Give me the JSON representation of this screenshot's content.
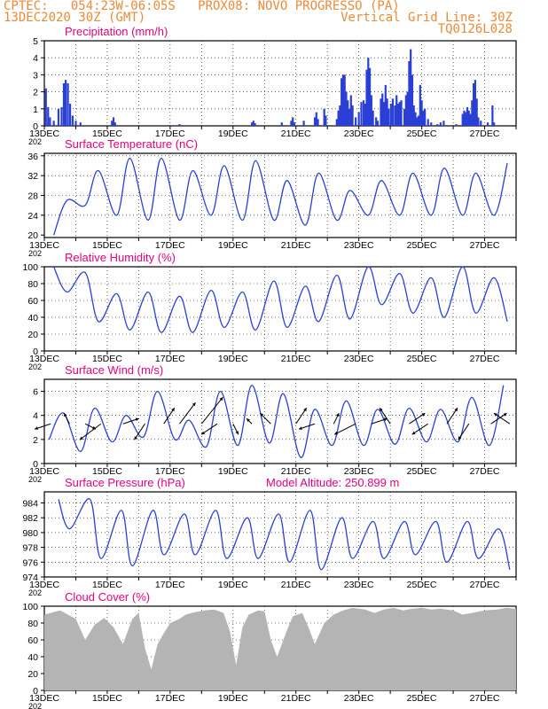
{
  "header": {
    "line1_left": "CPTEC:   054:23W-06:05S   PROX08: NOVO PROGRESSO (PA)",
    "line2_left": "13DEC2020 30Z (GMT)",
    "line2_right": "Vertical Grid Line: 30Z",
    "line3_right": "TQ0126L028"
  },
  "colors": {
    "header": "#ea8a3a",
    "title": "#e6007e",
    "series": "#2a3fd6",
    "cloud": "#b4b4b4"
  },
  "x_axis": {
    "start_day": 13,
    "days": 15,
    "tick_labels": [
      "13DEC",
      "15DEC",
      "17DEC",
      "19DEC",
      "21DEC",
      "23DEC",
      "25DEC",
      "27DEC"
    ],
    "year_fragment": "202"
  },
  "chart_data": [
    {
      "id": "precip",
      "type": "bar",
      "title": "Precipitation  (mm/h)",
      "ylim": [
        0,
        5
      ],
      "yticks": [
        0,
        1,
        2,
        3,
        4,
        5
      ],
      "events": [
        {
          "day": 0.05,
          "value": 2.2
        },
        {
          "day": 0.12,
          "value": 1.1
        },
        {
          "day": 0.18,
          "value": 0.5
        },
        {
          "day": 0.3,
          "value": 0.3
        },
        {
          "day": 0.45,
          "value": 1.0
        },
        {
          "day": 0.55,
          "value": 1.1
        },
        {
          "day": 0.62,
          "value": 2.5
        },
        {
          "day": 0.68,
          "value": 2.7
        },
        {
          "day": 0.75,
          "value": 2.5
        },
        {
          "day": 0.82,
          "value": 1.3
        },
        {
          "day": 0.9,
          "value": 0.6
        },
        {
          "day": 1.0,
          "value": 0.3
        },
        {
          "day": 1.15,
          "value": 0.2
        },
        {
          "day": 2.15,
          "value": 0.3
        },
        {
          "day": 2.2,
          "value": 0.5
        },
        {
          "day": 2.25,
          "value": 0.2
        },
        {
          "day": 4.3,
          "value": 0.1
        },
        {
          "day": 6.6,
          "value": 0.2
        },
        {
          "day": 6.65,
          "value": 0.3
        },
        {
          "day": 6.7,
          "value": 0.15
        },
        {
          "day": 7.55,
          "value": 0.2
        },
        {
          "day": 7.85,
          "value": 0.3
        },
        {
          "day": 7.9,
          "value": 0.5
        },
        {
          "day": 7.95,
          "value": 0.2
        },
        {
          "day": 8.25,
          "value": 0.3
        },
        {
          "day": 8.6,
          "value": 0.5
        },
        {
          "day": 8.65,
          "value": 0.8
        },
        {
          "day": 8.7,
          "value": 0.4
        },
        {
          "day": 8.9,
          "value": 1.0
        },
        {
          "day": 8.95,
          "value": 0.6
        },
        {
          "day": 9.3,
          "value": 0.4
        },
        {
          "day": 9.35,
          "value": 0.9
        },
        {
          "day": 9.4,
          "value": 1.2
        },
        {
          "day": 9.45,
          "value": 2.8
        },
        {
          "day": 9.5,
          "value": 3.0
        },
        {
          "day": 9.55,
          "value": 3.0
        },
        {
          "day": 9.6,
          "value": 2.0
        },
        {
          "day": 9.65,
          "value": 1.5
        },
        {
          "day": 9.7,
          "value": 1.0
        },
        {
          "day": 9.75,
          "value": 1.8
        },
        {
          "day": 9.8,
          "value": 1.2
        },
        {
          "day": 9.9,
          "value": 0.5
        },
        {
          "day": 10.0,
          "value": 0.8
        },
        {
          "day": 10.08,
          "value": 1.4
        },
        {
          "day": 10.15,
          "value": 1.5
        },
        {
          "day": 10.2,
          "value": 1.3
        },
        {
          "day": 10.25,
          "value": 3.3
        },
        {
          "day": 10.3,
          "value": 4.0
        },
        {
          "day": 10.35,
          "value": 3.4
        },
        {
          "day": 10.4,
          "value": 1.8
        },
        {
          "day": 10.45,
          "value": 0.9
        },
        {
          "day": 10.55,
          "value": 0.5
        },
        {
          "day": 10.6,
          "value": 0.3
        },
        {
          "day": 10.7,
          "value": 1.6
        },
        {
          "day": 10.75,
          "value": 1.9
        },
        {
          "day": 10.8,
          "value": 1.4
        },
        {
          "day": 10.85,
          "value": 2.4
        },
        {
          "day": 10.9,
          "value": 1.6
        },
        {
          "day": 10.95,
          "value": 1.0
        },
        {
          "day": 11.02,
          "value": 1.3
        },
        {
          "day": 11.08,
          "value": 1.6
        },
        {
          "day": 11.15,
          "value": 1.2
        },
        {
          "day": 11.2,
          "value": 1.8
        },
        {
          "day": 11.25,
          "value": 1.3
        },
        {
          "day": 11.3,
          "value": 1.4
        },
        {
          "day": 11.35,
          "value": 1.5
        },
        {
          "day": 11.45,
          "value": 1.0
        },
        {
          "day": 11.5,
          "value": 1.8
        },
        {
          "day": 11.55,
          "value": 2.0
        },
        {
          "day": 11.6,
          "value": 3.8
        },
        {
          "day": 11.65,
          "value": 4.5
        },
        {
          "day": 11.7,
          "value": 3.0
        },
        {
          "day": 11.75,
          "value": 1.2
        },
        {
          "day": 11.8,
          "value": 0.8
        },
        {
          "day": 11.85,
          "value": 0.5
        },
        {
          "day": 11.9,
          "value": 0.6
        },
        {
          "day": 11.95,
          "value": 2.4
        },
        {
          "day": 12.0,
          "value": 1.5
        },
        {
          "day": 12.05,
          "value": 0.9
        },
        {
          "day": 12.1,
          "value": 1.0
        },
        {
          "day": 12.2,
          "value": 0.4
        },
        {
          "day": 12.3,
          "value": 0.2
        },
        {
          "day": 12.5,
          "value": 0.1
        },
        {
          "day": 12.6,
          "value": 0.2
        },
        {
          "day": 12.7,
          "value": 0.3
        },
        {
          "day": 13.1,
          "value": 0.1
        },
        {
          "day": 13.3,
          "value": 0.7
        },
        {
          "day": 13.35,
          "value": 0.9
        },
        {
          "day": 13.4,
          "value": 0.8
        },
        {
          "day": 13.45,
          "value": 1.1
        },
        {
          "day": 13.5,
          "value": 0.9
        },
        {
          "day": 13.55,
          "value": 0.7
        },
        {
          "day": 13.6,
          "value": 1.5
        },
        {
          "day": 13.65,
          "value": 2.5
        },
        {
          "day": 13.7,
          "value": 2.7
        },
        {
          "day": 13.75,
          "value": 1.6
        },
        {
          "day": 13.8,
          "value": 0.5
        },
        {
          "day": 13.88,
          "value": 0.3
        },
        {
          "day": 14.1,
          "value": 0.2
        },
        {
          "day": 14.25,
          "value": 1.2
        },
        {
          "day": 14.3,
          "value": 0.2
        }
      ]
    },
    {
      "id": "temp",
      "type": "line",
      "title": "Surface Temperature (nC)",
      "ylim": [
        19.5,
        36.5
      ],
      "yticks": [
        20,
        24,
        28,
        32,
        36
      ],
      "tmax": [
        27,
        33,
        35.5,
        35.5,
        33,
        34,
        35,
        31,
        32.5,
        29,
        31,
        32.5,
        33.5,
        32.5,
        34.5
      ],
      "tmin": [
        20,
        26,
        24,
        23,
        23,
        24,
        23,
        23,
        22,
        23,
        24,
        24,
        24,
        24,
        24
      ]
    },
    {
      "id": "rh",
      "type": "line",
      "title": "Relative Humidity (%)",
      "ylim": [
        0,
        100
      ],
      "yticks": [
        0,
        20,
        40,
        60,
        80,
        100
      ],
      "rhmax": [
        100,
        93,
        68,
        70,
        65,
        72,
        70,
        83,
        77,
        90,
        100,
        92,
        87,
        100,
        87
      ],
      "rhmin": [
        70,
        35,
        25,
        22,
        22,
        28,
        25,
        28,
        35,
        38,
        55,
        45,
        40,
        45,
        35
      ]
    },
    {
      "id": "wind",
      "type": "line",
      "title": "Surface Wind (m/s)",
      "ylim": [
        0,
        7
      ],
      "yticks": [
        0,
        2,
        4,
        6
      ],
      "speed_max": [
        4.2,
        4.6,
        4.0,
        6.0,
        3.6,
        6.0,
        6.5,
        5.8,
        4.5,
        5.2,
        4.5,
        4.6,
        4.5,
        5.5,
        6.5
      ],
      "speed_min": [
        2.0,
        1.0,
        1.8,
        2.2,
        2.0,
        1.4,
        1.5,
        1.7,
        0.5,
        1.5,
        1.5,
        1.6,
        1.8,
        1.8,
        1.5
      ],
      "vectors": [
        {
          "day": 0.2,
          "u": -0.3,
          "v": -0.1
        },
        {
          "day": 0.8,
          "u": -0.1,
          "v": 0.2
        },
        {
          "day": 1.3,
          "u": 0.2,
          "v": -0.1
        },
        {
          "day": 1.8,
          "u": -0.4,
          "v": -0.3
        },
        {
          "day": 2.5,
          "u": 0.3,
          "v": 0.1
        },
        {
          "day": 3.2,
          "u": -0.2,
          "v": -0.3
        },
        {
          "day": 3.8,
          "u": 0.2,
          "v": 0.3
        },
        {
          "day": 4.3,
          "u": 0.3,
          "v": 0.4
        },
        {
          "day": 5.0,
          "u": 0.4,
          "v": 0.5
        },
        {
          "day": 5.5,
          "u": -0.3,
          "v": -0.2
        },
        {
          "day": 6.0,
          "u": 0.1,
          "v": -0.2
        },
        {
          "day": 6.6,
          "u": -0.1,
          "v": 0.1
        },
        {
          "day": 7.2,
          "u": -0.2,
          "v": 0.2
        },
        {
          "day": 8.0,
          "u": 0.2,
          "v": 0.3
        },
        {
          "day": 8.6,
          "u": -0.3,
          "v": -0.1
        },
        {
          "day": 9.2,
          "u": 0.1,
          "v": 0.2
        },
        {
          "day": 9.9,
          "u": -0.4,
          "v": -0.2
        },
        {
          "day": 10.4,
          "u": 0.3,
          "v": 0.1
        },
        {
          "day": 11.0,
          "u": -0.2,
          "v": 0.3
        },
        {
          "day": 11.6,
          "u": 0.3,
          "v": 0.2
        },
        {
          "day": 12.2,
          "u": -0.3,
          "v": -0.2
        },
        {
          "day": 12.8,
          "u": 0.2,
          "v": 0.3
        },
        {
          "day": 13.5,
          "u": -0.2,
          "v": -0.3
        },
        {
          "day": 14.2,
          "u": 0.3,
          "v": 0.2
        },
        {
          "day": 14.8,
          "u": -0.3,
          "v": 0.2
        }
      ]
    },
    {
      "id": "press",
      "type": "line",
      "title": "Surface Pressure (hPa)",
      "subtitle": "Model Altitude: 250.899  m",
      "ylim": [
        974,
        985.5
      ],
      "yticks": [
        974,
        976,
        978,
        980,
        982,
        984
      ],
      "pmax": [
        984.5,
        984.5,
        983,
        983,
        982.5,
        983,
        982,
        982.5,
        983,
        982,
        981.5,
        981.5,
        981.5,
        981.5,
        980.5
      ],
      "pmin": [
        980.5,
        976.5,
        975.5,
        977,
        977,
        976.5,
        976.5,
        976,
        975,
        976.5,
        976.5,
        977,
        976,
        976.5,
        975
      ]
    },
    {
      "id": "cloud",
      "type": "area",
      "title": "Cloud Cover (%)",
      "ylim": [
        0,
        100
      ],
      "yticks": [
        0,
        20,
        40,
        60,
        80,
        100
      ],
      "points": [
        [
          0,
          90
        ],
        [
          0.5,
          95
        ],
        [
          1,
          85
        ],
        [
          1.3,
          60
        ],
        [
          1.6,
          78
        ],
        [
          1.9,
          86
        ],
        [
          2.2,
          75
        ],
        [
          2.5,
          55
        ],
        [
          2.8,
          85
        ],
        [
          3.0,
          92
        ],
        [
          3.2,
          50
        ],
        [
          3.4,
          25
        ],
        [
          3.6,
          55
        ],
        [
          3.8,
          68
        ],
        [
          4.0,
          80
        ],
        [
          4.3,
          85
        ],
        [
          4.5,
          90
        ],
        [
          4.8,
          93
        ],
        [
          5.1,
          95
        ],
        [
          5.4,
          96
        ],
        [
          5.7,
          92
        ],
        [
          5.9,
          70
        ],
        [
          6.1,
          30
        ],
        [
          6.3,
          75
        ],
        [
          6.5,
          90
        ],
        [
          6.8,
          95
        ],
        [
          7.0,
          94
        ],
        [
          7.2,
          60
        ],
        [
          7.4,
          40
        ],
        [
          7.7,
          70
        ],
        [
          7.9,
          88
        ],
        [
          8.2,
          92
        ],
        [
          8.4,
          75
        ],
        [
          8.6,
          55
        ],
        [
          8.9,
          80
        ],
        [
          9.2,
          90
        ],
        [
          9.5,
          95
        ],
        [
          9.8,
          98
        ],
        [
          10.2,
          96
        ],
        [
          10.5,
          92
        ],
        [
          10.8,
          96
        ],
        [
          11.1,
          98
        ],
        [
          11.4,
          95
        ],
        [
          11.7,
          97
        ],
        [
          12.0,
          98
        ],
        [
          12.3,
          96
        ],
        [
          12.6,
          97
        ],
        [
          13.0,
          95
        ],
        [
          13.3,
          90
        ],
        [
          13.6,
          92
        ],
        [
          14.0,
          95
        ],
        [
          14.4,
          96
        ],
        [
          14.7,
          98
        ],
        [
          15.0,
          97
        ]
      ]
    }
  ]
}
